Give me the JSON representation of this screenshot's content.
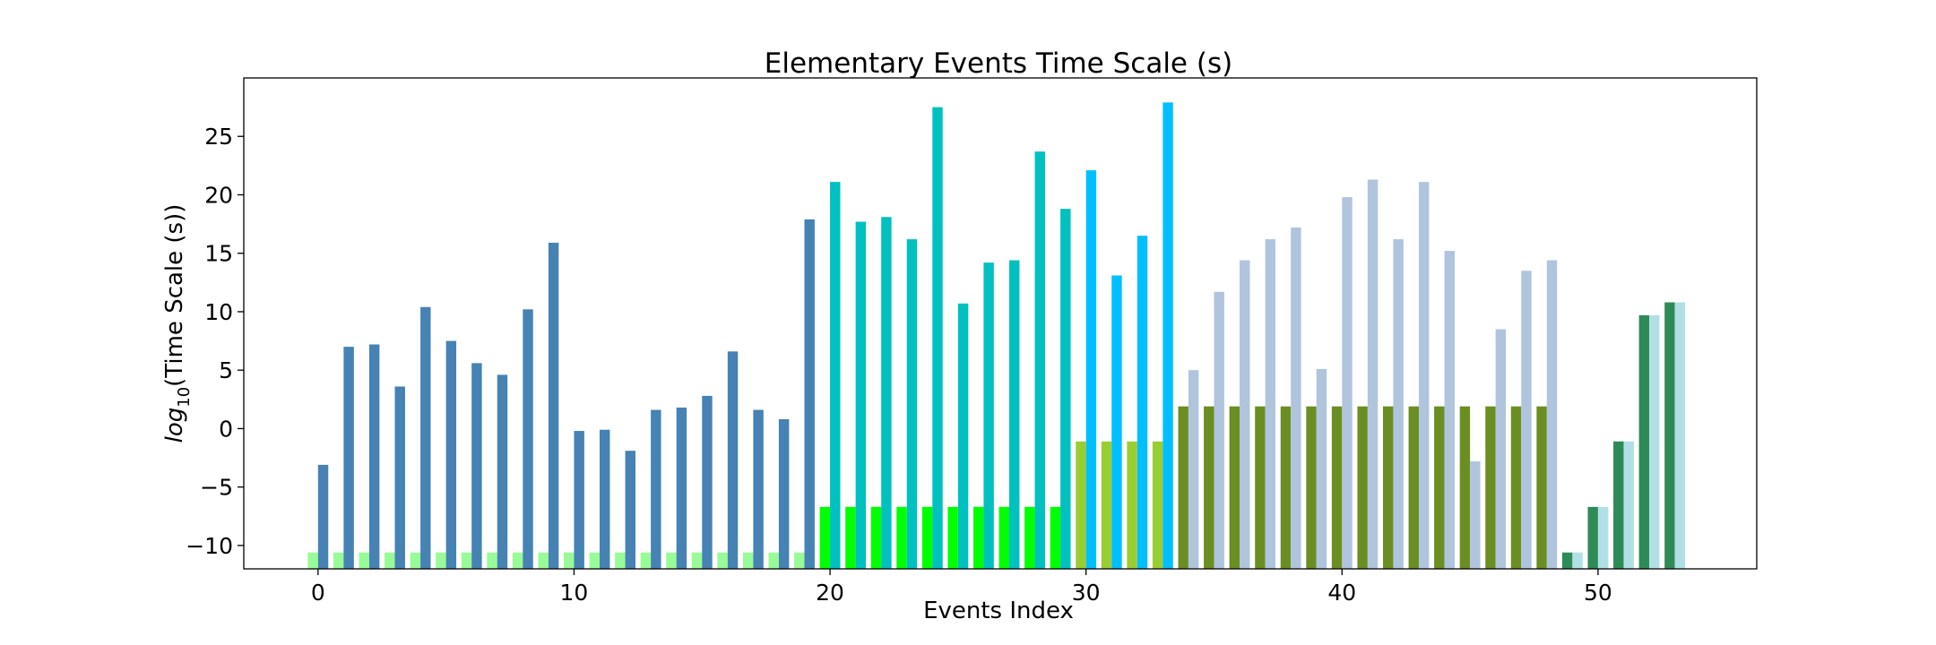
{
  "chart_data": {
    "type": "bar",
    "title": "Elementary Events Time Scale (s)",
    "xlabel": "Events Index",
    "ylabel": {
      "base": "log",
      "subscript": "10",
      "rest": "(Time Scale (s))"
    },
    "xlim": [
      -2.9,
      56.2
    ],
    "ylim": [
      -12,
      30
    ],
    "xticks": [
      0,
      10,
      20,
      30,
      40,
      50
    ],
    "yticks": [
      -10,
      -5,
      0,
      5,
      10,
      15,
      20,
      25
    ],
    "grid": false,
    "legend": "none",
    "baseline": -12,
    "series": [
      {
        "color": "#98fb98",
        "offset": -0.2,
        "x": [
          0,
          1,
          2,
          3,
          4,
          5,
          6,
          7,
          8,
          9,
          10,
          11,
          12,
          13,
          14,
          15,
          16,
          17,
          18,
          19
        ],
        "values": [
          -10.6,
          -10.6,
          -10.6,
          -10.6,
          -10.6,
          -10.6,
          -10.6,
          -10.6,
          -10.6,
          -10.6,
          -10.6,
          -10.6,
          -10.6,
          -10.6,
          -10.6,
          -10.6,
          -10.6,
          -10.6,
          -10.6,
          -10.6
        ]
      },
      {
        "color": "#4682b4",
        "offset": 0.2,
        "x": [
          0,
          1,
          2,
          3,
          4,
          5,
          6,
          7,
          8,
          9,
          10,
          11,
          12,
          13,
          14,
          15,
          16,
          17,
          18,
          19
        ],
        "values": [
          -3.1,
          7.0,
          7.2,
          3.6,
          10.4,
          7.5,
          5.6,
          4.6,
          10.2,
          15.9,
          -0.2,
          -0.1,
          -1.9,
          1.6,
          1.8,
          2.8,
          6.6,
          1.6,
          0.8,
          17.9
        ]
      },
      {
        "color": "#00ff00",
        "offset": -0.2,
        "x": [
          20,
          21,
          22,
          23,
          24,
          25,
          26,
          27,
          28,
          29
        ],
        "values": [
          -6.7,
          -6.7,
          -6.7,
          -6.7,
          -6.7,
          -6.7,
          -6.7,
          -6.7,
          -6.7,
          -6.7
        ]
      },
      {
        "color": "#00c0c0",
        "offset": 0.2,
        "x": [
          20,
          21,
          22,
          23,
          24,
          25,
          26,
          27,
          28,
          29
        ],
        "values": [
          21.1,
          17.7,
          18.1,
          16.2,
          27.5,
          10.7,
          14.2,
          14.4,
          23.7,
          18.8
        ]
      },
      {
        "color": "#9acd32",
        "offset": -0.2,
        "x": [
          30,
          31,
          32,
          33
        ],
        "values": [
          -1.1,
          -1.1,
          -1.1,
          -1.1
        ]
      },
      {
        "color": "#00bfff",
        "offset": 0.2,
        "x": [
          30,
          31,
          32,
          33
        ],
        "values": [
          22.1,
          13.1,
          16.5,
          27.9
        ]
      },
      {
        "color": "#6b8e23",
        "offset": -0.2,
        "x": [
          34,
          35,
          36,
          37,
          38,
          39,
          40,
          41,
          42,
          43,
          44,
          45,
          46,
          47,
          48
        ],
        "values": [
          1.9,
          1.9,
          1.9,
          1.9,
          1.9,
          1.9,
          1.9,
          1.9,
          1.9,
          1.9,
          1.9,
          1.9,
          1.9,
          1.9,
          1.9
        ]
      },
      {
        "color": "#b0c4de",
        "offset": 0.2,
        "x": [
          34,
          35,
          36,
          37,
          38,
          39,
          40,
          41,
          42,
          43,
          44,
          45,
          46,
          47,
          48
        ],
        "values": [
          5.0,
          11.7,
          14.4,
          16.2,
          17.2,
          5.1,
          19.8,
          21.3,
          16.2,
          21.1,
          15.2,
          -2.8,
          8.5,
          13.5,
          14.4
        ]
      },
      {
        "color": "#2e8b57",
        "offset": -0.2,
        "x": [
          49,
          50,
          51,
          52,
          53
        ],
        "values": [
          -10.6,
          -6.7,
          -1.1,
          9.7,
          10.8
        ]
      },
      {
        "color": "#b0e0e6",
        "offset": 0.2,
        "x": [
          49,
          50,
          51,
          52,
          53
        ],
        "values": [
          -10.6,
          -6.7,
          -1.1,
          9.7,
          10.8
        ]
      }
    ]
  }
}
